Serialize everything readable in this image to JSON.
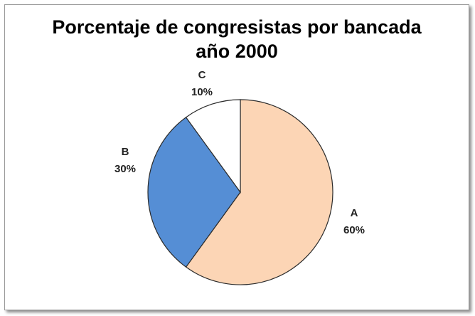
{
  "chart_data": {
    "type": "pie",
    "title": "Porcentaje de congresistas por bancada",
    "subtitle": "año 2000",
    "start_angle_deg": 0,
    "direction": "clockwise",
    "slices": [
      {
        "category": "A",
        "percent_label": "60%",
        "value": 60,
        "color": "#FCD5B5"
      },
      {
        "category": "B",
        "percent_label": "30%",
        "value": 30,
        "color": "#558ED5"
      },
      {
        "category": "C",
        "percent_label": "10%",
        "value": 10,
        "color": "#FFFFFF"
      }
    ],
    "legend": "none"
  }
}
